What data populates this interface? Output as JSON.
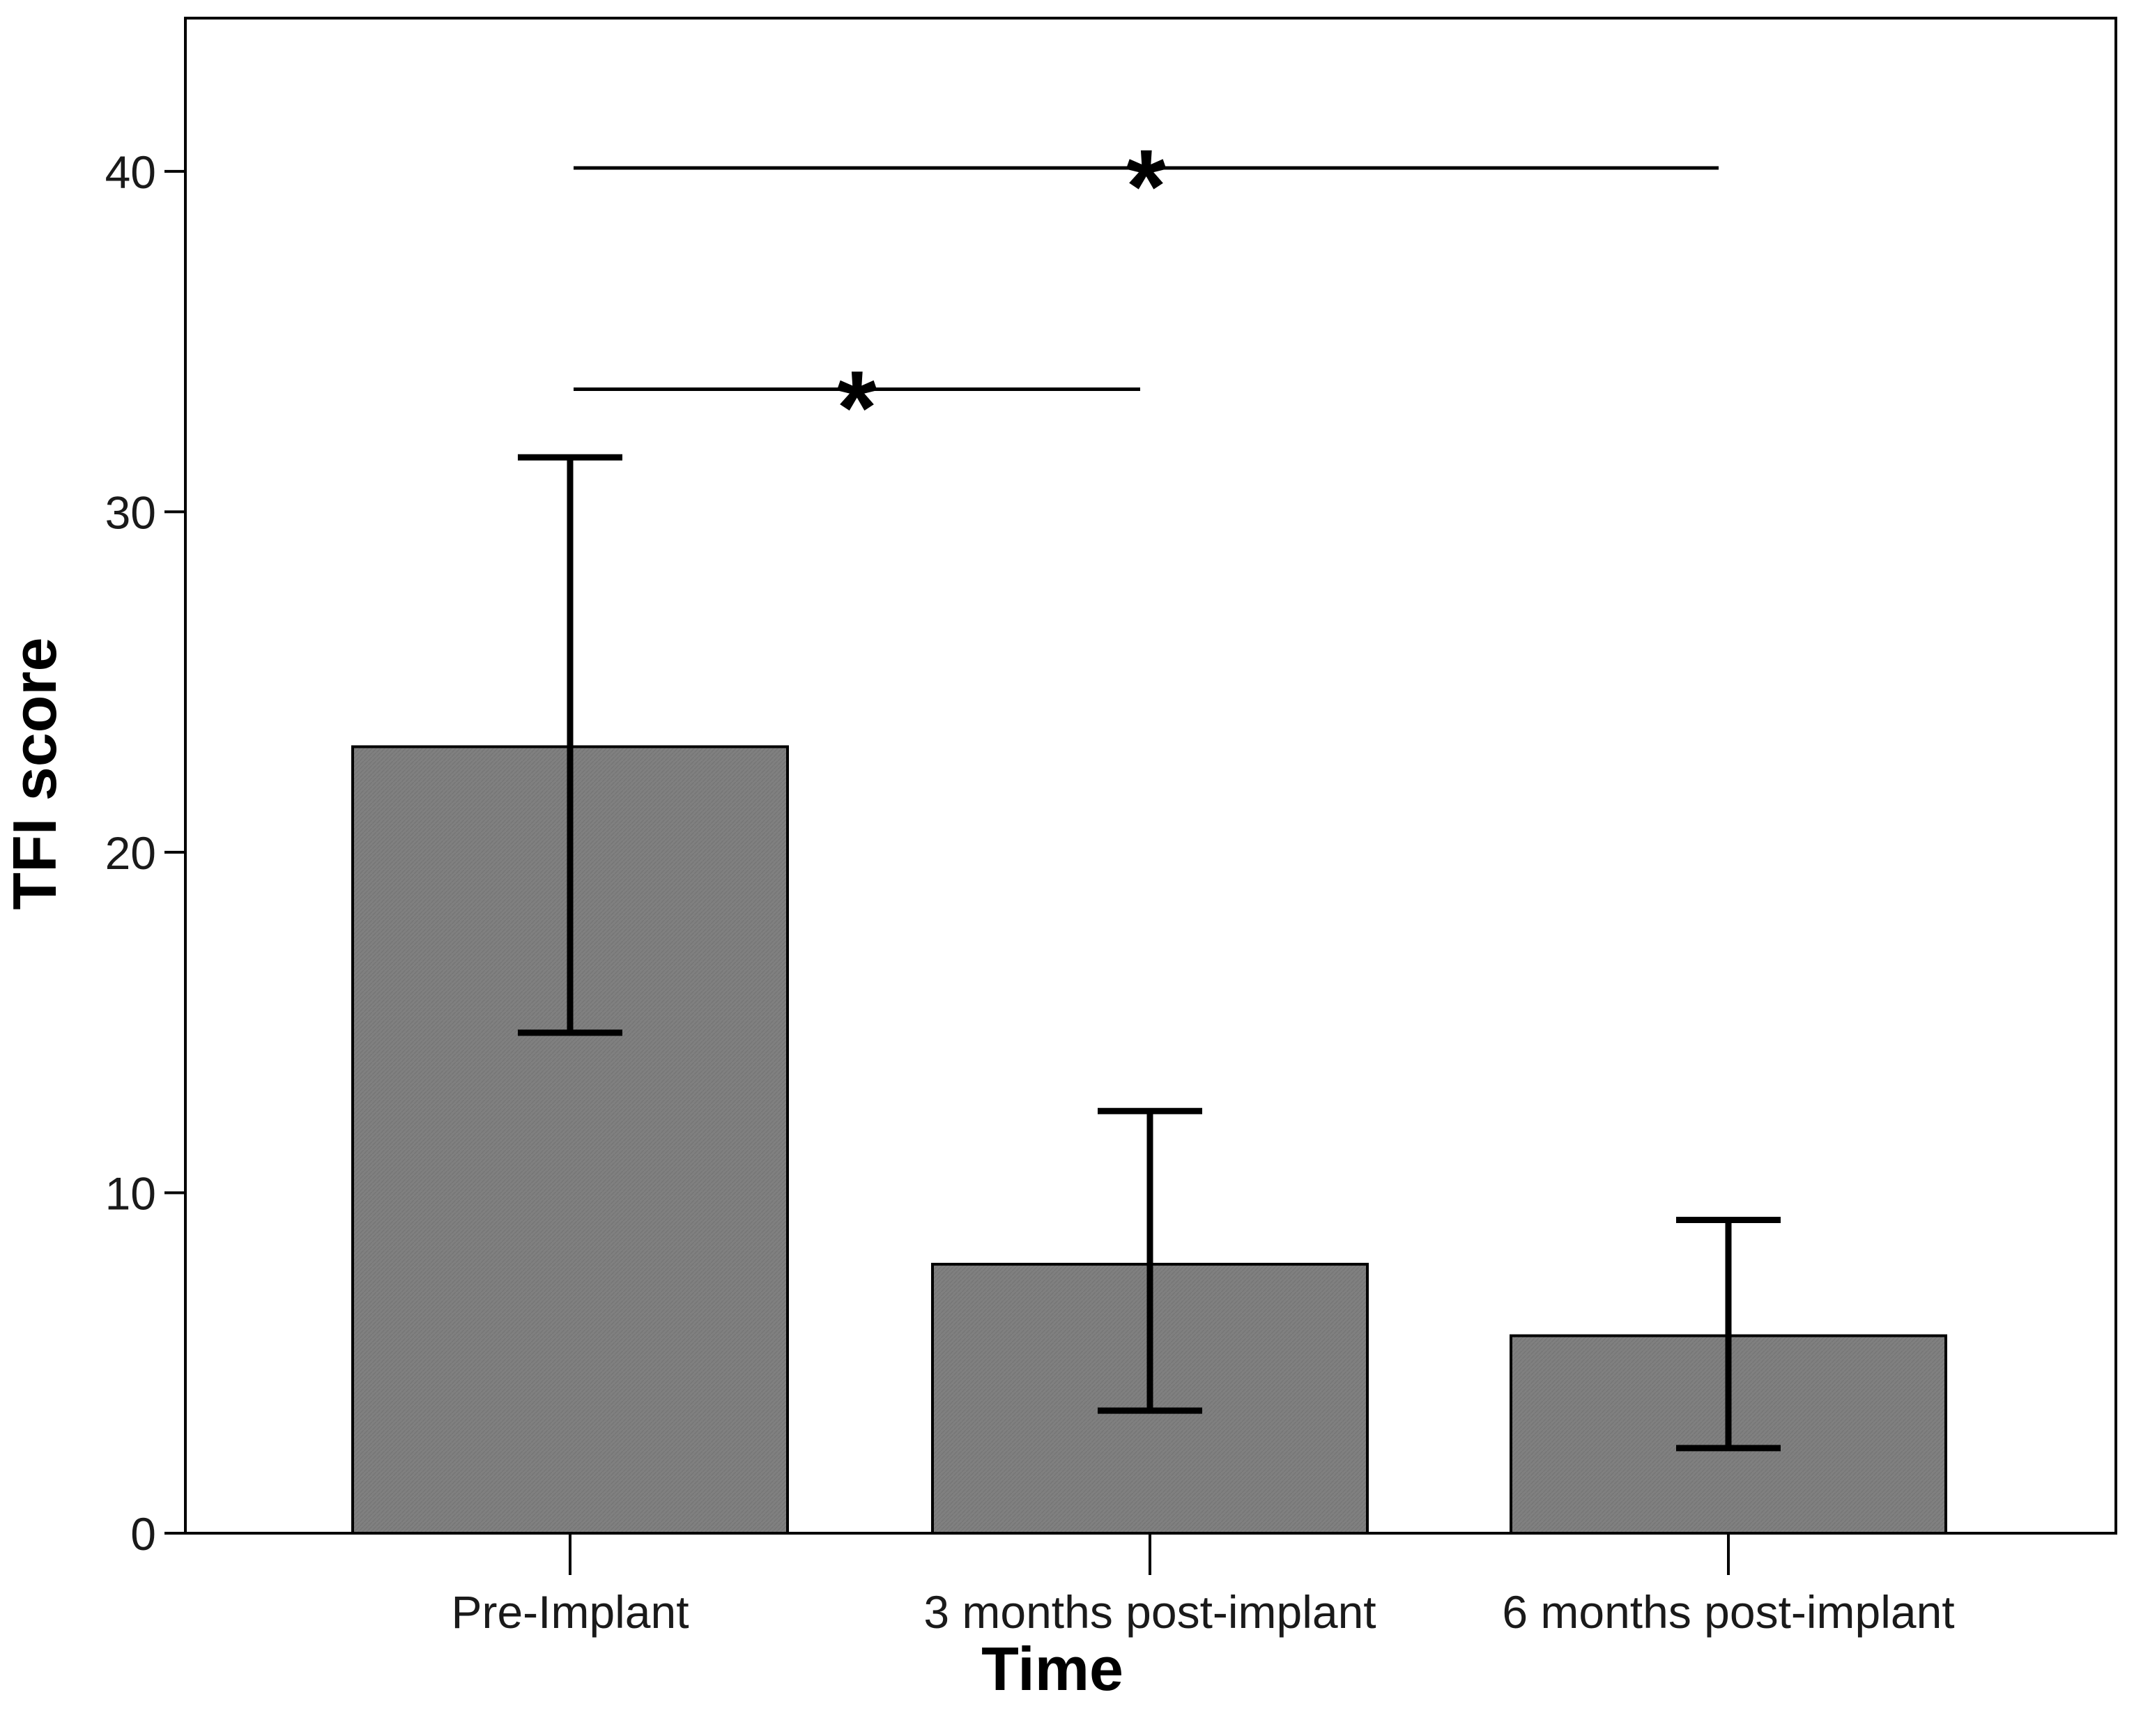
{
  "chart_data": {
    "type": "bar",
    "title": "",
    "xlabel": "Time",
    "ylabel": "TFI score",
    "categories": [
      "Pre-Implant",
      "3 months post-implant",
      "6 months post-implant"
    ],
    "values": [
      23.1,
      7.9,
      5.8
    ],
    "error_bars": [
      {
        "low": 14.7,
        "high": 31.6
      },
      {
        "low": 3.6,
        "high": 12.4
      },
      {
        "low": 2.5,
        "high": 9.2
      }
    ],
    "ylim": [
      0,
      44.5
    ],
    "yticks": [
      0,
      10,
      20,
      30,
      40
    ],
    "ytick_labels": [
      "0",
      "10",
      "20",
      "30",
      "40"
    ],
    "grid": false,
    "legend": "none",
    "bar_color": "#808080",
    "significance": [
      {
        "from": "Pre-Implant",
        "to": "3 months post-implant",
        "y": 33.6,
        "label": "*"
      },
      {
        "from": "Pre-Implant",
        "to": "6 months post-implant",
        "y": 40.1,
        "label": "*"
      }
    ]
  }
}
